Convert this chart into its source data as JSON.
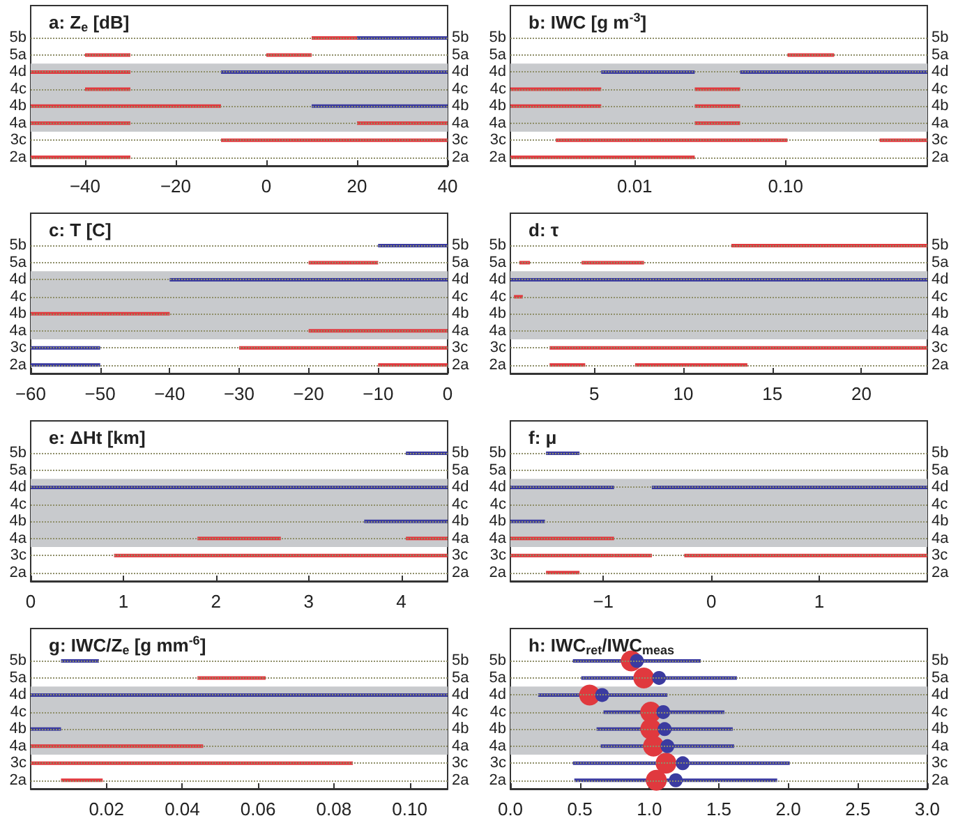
{
  "chart_data": [
    {
      "type": "bar",
      "orientation": "horizontal",
      "title": "a: Z$_{e}$ [dB]",
      "categories": [
        "5b",
        "5a",
        "4d",
        "4c",
        "4b",
        "4a",
        "3c",
        "2a"
      ],
      "y2_categories": [
        "5b",
        "5a",
        "4d",
        "4c",
        "4b",
        "4a",
        "3c",
        "2a"
      ],
      "xlim": [
        -52,
        40
      ],
      "xticks": [
        -40,
        -20,
        0,
        20,
        40
      ],
      "grid": "y",
      "bands": [
        {
          "axis": "y",
          "from": "4d",
          "to": "4a",
          "color": "#c8cacd"
        }
      ],
      "series": [
        {
          "color": "#e0393e",
          "base": [
            10,
            -40,
            -52,
            -40,
            -52,
            -52,
            -10,
            -52
          ],
          "values": [
            10,
            10,
            22,
            10,
            42,
            22,
            50,
            22
          ]
        },
        {
          "color": "#e0393e",
          "base": [
            null,
            0,
            null,
            null,
            null,
            20,
            null,
            null
          ],
          "values": [
            null,
            10,
            null,
            null,
            null,
            20,
            null,
            null
          ]
        },
        {
          "color": "#3b3ba0",
          "base": [
            20,
            null,
            -10,
            null,
            10,
            null,
            null,
            null
          ],
          "values": [
            20,
            null,
            50,
            null,
            30,
            null,
            null,
            null
          ]
        }
      ]
    },
    {
      "type": "bar",
      "orientation": "horizontal",
      "title": "b: IWC [g m$^{-3}$]",
      "categories": [
        "5b",
        "5a",
        "4d",
        "4c",
        "4b",
        "4a",
        "3c",
        "2a"
      ],
      "y2_categories": [
        "5b",
        "5a",
        "4d",
        "4c",
        "4b",
        "4a",
        "3c",
        "2a"
      ],
      "log": "x",
      "xlim": [
        0.0015,
        0.87
      ],
      "xticks": [
        0.01,
        {
          "value": 0.1,
          "label": "0.10"
        }
      ],
      "grid": "y",
      "bands": [
        {
          "axis": "y",
          "from": "4d",
          "to": "4a",
          "color": "#c8cacd"
        }
      ],
      "series": [
        {
          "color": "#e0393e",
          "base": [
            null,
            0.103,
            null,
            0.0015,
            0.0015,
            0.025,
            0.003,
            0.0015
          ],
          "values": [
            null,
            0.107,
            null,
            0.0045,
            0.0045,
            0.025,
            0.1,
            0.0235
          ]
        },
        {
          "color": "#e0393e",
          "base": [
            null,
            null,
            null,
            0.025,
            0.025,
            null,
            0.42,
            null
          ],
          "values": [
            null,
            null,
            null,
            0.025,
            0.025,
            null,
            0.45,
            null
          ]
        },
        {
          "color": "#3b3ba0",
          "base": [
            null,
            null,
            0.006,
            null,
            null,
            null,
            null,
            null
          ],
          "values": [
            null,
            null,
            0.019,
            null,
            null,
            null,
            null,
            null
          ]
        },
        {
          "color": "#3b3ba0",
          "base": [
            null,
            null,
            0.05,
            null,
            null,
            null,
            null,
            null
          ],
          "values": [
            null,
            null,
            0.82,
            null,
            null,
            null,
            null,
            null
          ]
        }
      ]
    },
    {
      "type": "bar",
      "orientation": "horizontal",
      "title": "c: T [C]",
      "categories": [
        "5b",
        "5a",
        "4d",
        "4c",
        "4b",
        "4a",
        "3c",
        "2a"
      ],
      "y2_categories": [
        "5b",
        "5a",
        "4d",
        "4c",
        "4b",
        "4a",
        "3c",
        "2a"
      ],
      "xlim": [
        -60,
        0
      ],
      "xticks": [
        -60,
        -50,
        -40,
        -30,
        -20,
        -10,
        0
      ],
      "grid": "y",
      "bands": [
        {
          "axis": "y",
          "from": "4d",
          "to": "4a",
          "color": "#c8cacd"
        }
      ],
      "series": [
        {
          "color": "#e0393e",
          "base": [
            null,
            -20,
            null,
            null,
            -60,
            -20,
            -30,
            -10
          ],
          "values": [
            null,
            10,
            null,
            null,
            20,
            20,
            30,
            10
          ]
        },
        {
          "color": "#3b3ba0",
          "base": [
            -10,
            null,
            -40,
            null,
            null,
            null,
            -60,
            -60
          ],
          "values": [
            10,
            null,
            40,
            null,
            null,
            null,
            10,
            10
          ]
        }
      ]
    },
    {
      "type": "bar",
      "orientation": "horizontal",
      "title": "d: τ",
      "categories": [
        "5b",
        "5a",
        "4d",
        "4c",
        "4b",
        "4a",
        "3c",
        "2a"
      ],
      "y2_categories": [
        "5b",
        "5a",
        "4d",
        "4c",
        "4b",
        "4a",
        "3c",
        "2a"
      ],
      "xlim": [
        0.3,
        23.7
      ],
      "xticks": [
        5,
        10,
        15,
        20
      ],
      "grid": "y",
      "bands": [
        {
          "axis": "y",
          "from": "4d",
          "to": "4a",
          "color": "#c8cacd"
        }
      ],
      "series": [
        {
          "color": "#e0393e",
          "base": [
            12.7,
            0.8,
            null,
            0.5,
            null,
            null,
            2.5,
            2.5
          ],
          "values": [
            11,
            0.6,
            null,
            0.5,
            null,
            null,
            21.2,
            2
          ]
        },
        {
          "color": "#e0393e",
          "base": [
            null,
            4.3,
            null,
            null,
            null,
            null,
            null,
            7.3
          ],
          "values": [
            null,
            3.5,
            null,
            null,
            null,
            null,
            null,
            6.3
          ]
        },
        {
          "color": "#3b3ba0",
          "base": [
            null,
            null,
            0.3,
            null,
            null,
            null,
            null,
            null
          ],
          "values": [
            null,
            null,
            23.4,
            null,
            null,
            null,
            null,
            null
          ]
        }
      ]
    },
    {
      "type": "bar",
      "orientation": "horizontal",
      "title": "e: ΔHt [km]",
      "categories": [
        "5b",
        "5a",
        "4d",
        "4c",
        "4b",
        "4a",
        "3c",
        "2a"
      ],
      "y2_categories": [
        "5b",
        "5a",
        "4d",
        "4c",
        "4b",
        "4a",
        "3c",
        "2a"
      ],
      "xlim": [
        0,
        4.5
      ],
      "xticks": [
        0,
        1,
        2,
        3,
        4
      ],
      "grid": "y",
      "bands": [
        {
          "axis": "y",
          "from": "4d",
          "to": "4a",
          "color": "#c8cacd"
        }
      ],
      "series": [
        {
          "color": "#e0393e",
          "base": [
            null,
            null,
            null,
            null,
            null,
            1.8,
            0.9,
            null
          ],
          "values": [
            null,
            null,
            null,
            null,
            null,
            0.9,
            3.6,
            null
          ]
        },
        {
          "color": "#e0393e",
          "base": [
            null,
            null,
            null,
            null,
            null,
            4.05,
            null,
            null
          ],
          "values": [
            null,
            null,
            null,
            null,
            null,
            0.45,
            null,
            null
          ]
        },
        {
          "color": "#3b3ba0",
          "base": [
            4.05,
            null,
            0,
            null,
            3.6,
            null,
            null,
            null
          ],
          "values": [
            0.45,
            null,
            4.5,
            null,
            0.9,
            null,
            null,
            null
          ]
        }
      ]
    },
    {
      "type": "bar",
      "orientation": "horizontal",
      "title": "f: μ",
      "categories": [
        "5b",
        "5a",
        "4d",
        "4c",
        "4b",
        "4a",
        "3c",
        "2a"
      ],
      "y2_categories": [
        "5b",
        "5a",
        "4d",
        "4c",
        "4b",
        "4a",
        "3c",
        "2a"
      ],
      "xlim": [
        -1.86,
        2
      ],
      "xticks": [
        -1,
        0,
        1
      ],
      "grid": "y",
      "bands": [
        {
          "axis": "y",
          "from": "4d",
          "to": "4a",
          "color": "#c8cacd"
        }
      ],
      "series": [
        {
          "color": "#e0393e",
          "base": [
            null,
            null,
            null,
            null,
            null,
            -1.86,
            -1.86,
            -1.53
          ],
          "values": [
            null,
            null,
            null,
            null,
            null,
            0.96,
            0.96,
            0.31
          ]
        },
        {
          "color": "#e0393e",
          "base": [
            null,
            null,
            null,
            null,
            null,
            null,
            -0.9,
            null
          ],
          "values": [
            null,
            null,
            null,
            null,
            null,
            null,
            0.35,
            null
          ]
        },
        {
          "color": "#e0393e",
          "base": [
            null,
            null,
            null,
            null,
            null,
            null,
            -0.25,
            null
          ],
          "values": [
            null,
            null,
            null,
            null,
            null,
            null,
            2.25,
            null
          ]
        },
        {
          "color": "#3b3ba0",
          "base": [
            -1.53,
            null,
            -1.86,
            null,
            -1.86,
            null,
            null,
            null
          ],
          "values": [
            0.31,
            null,
            0.96,
            null,
            0.32,
            null,
            null,
            null
          ]
        },
        {
          "color": "#3b3ba0",
          "base": [
            null,
            null,
            -0.55,
            null,
            null,
            null,
            null,
            null
          ],
          "values": [
            null,
            null,
            2.55,
            null,
            null,
            null,
            null,
            null
          ]
        }
      ]
    },
    {
      "type": "bar",
      "orientation": "horizontal",
      "title": "g: IWC/Z$_{e}$ [g mm$^{-6}$]",
      "categories": [
        "5b",
        "5a",
        "4d",
        "4c",
        "4b",
        "4a",
        "3c",
        "2a"
      ],
      "y2_categories": [
        "5b",
        "5a",
        "4d",
        "4c",
        "4b",
        "4a",
        "3c",
        "2a"
      ],
      "xlim": [
        0,
        0.11
      ],
      "xticks": [
        0.02,
        0.04,
        0.06,
        0.08,
        {
          "value": 0.1,
          "label": "0.10"
        }
      ],
      "grid": "y",
      "bands": [
        {
          "axis": "y",
          "from": "4d",
          "to": "4a",
          "color": "#c8cacd"
        }
      ],
      "series": [
        {
          "color": "#e0393e",
          "base": [
            null,
            0.044,
            null,
            null,
            null,
            0,
            0,
            0.008
          ],
          "values": [
            null,
            0.018,
            null,
            null,
            null,
            0.0455,
            0.085,
            0.011
          ]
        },
        {
          "color": "#3b3ba0",
          "base": [
            0.008,
            null,
            0,
            null,
            0,
            null,
            null,
            null
          ],
          "values": [
            0.01,
            null,
            0.11,
            null,
            0.008,
            null,
            null,
            null
          ]
        }
      ]
    },
    {
      "type": "bar",
      "orientation": "horizontal",
      "title": "h: IWC$_{ret}$/IWC$_{meas}$",
      "categories": [
        "5b",
        "5a",
        "4d",
        "4c",
        "4b",
        "4a",
        "3c",
        "2a"
      ],
      "y2_categories": [
        "5b",
        "5a",
        "4d",
        "4c",
        "4b",
        "4a",
        "3c",
        "2a"
      ],
      "xlim": [
        0,
        3
      ],
      "xticks": [
        {
          "value": 0,
          "label": "0.0"
        },
        {
          "value": 0.5,
          "label": "0.5"
        },
        {
          "value": 1,
          "label": "1.0"
        },
        {
          "value": 1.5,
          "label": "1.5"
        },
        {
          "value": 2,
          "label": "2.0"
        },
        {
          "value": 2.5,
          "label": "2.5"
        },
        {
          "value": 3,
          "label": "3.0"
        }
      ],
      "grid": "y",
      "bands": [
        {
          "axis": "y",
          "from": "4d",
          "to": "4a",
          "color": "#c8cacd"
        }
      ],
      "series": [
        {
          "color": "#3b3ba0",
          "base": [
            0.45,
            0.51,
            0.2,
            0.67,
            0.62,
            0.65,
            0.45,
            0.46
          ],
          "values": [
            0.92,
            1.12,
            0.93,
            0.87,
            0.98,
            0.96,
            1.56,
            1.46
          ]
        },
        {
          "type": "scatter",
          "marker": "circle",
          "color": "#e0393e",
          "values": [
            0.87,
            0.96,
            0.57,
            1.01,
            1.01,
            1.03,
            1.12,
            1.05
          ]
        },
        {
          "type": "scatter",
          "marker": "circle",
          "color": "#3b3ba0",
          "values": [
            0.91,
            1.07,
            0.66,
            1.1,
            1.11,
            1.13,
            1.24,
            1.19
          ]
        }
      ]
    }
  ]
}
